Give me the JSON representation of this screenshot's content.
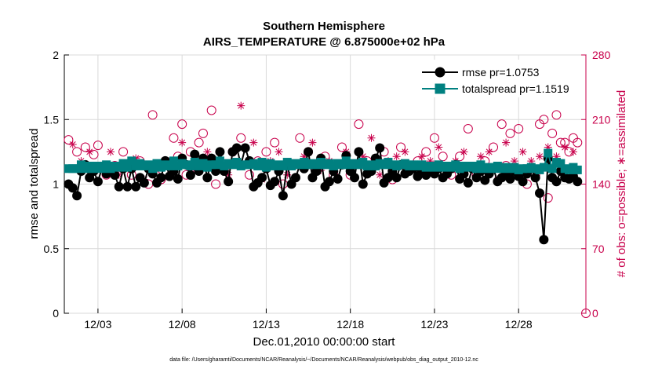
{
  "chart_data": {
    "type": "line",
    "title": "Southern Hemisphere",
    "subtitle": "AIRS_TEMPERATURE @ 6.875000e+02 hPa",
    "xlabel": "Dec.01,2010 00:00:00 start",
    "ylabel": "rmse and totalspread",
    "ylabel_right": "# of obs: o=possible; ∗=assimilated",
    "x_ticks": [
      {
        "value": 3,
        "label": "12/03"
      },
      {
        "value": 8,
        "label": "12/08"
      },
      {
        "value": 13,
        "label": "12/13"
      },
      {
        "value": 18,
        "label": "12/18"
      },
      {
        "value": 23,
        "label": "12/23"
      },
      {
        "value": 28,
        "label": "12/28"
      }
    ],
    "xlim": [
      1,
      32
    ],
    "ylim": [
      0,
      2
    ],
    "y_ticks": [
      0,
      0.5,
      1,
      1.5,
      2
    ],
    "ylim_right": [
      0,
      280
    ],
    "y_ticks_right": [
      0,
      70,
      140,
      210,
      280
    ],
    "footer": "data file: /Users/gharamti/Documents/NCAR/Reanalysis/~/Documents/NCAR/Reanalysis/webpub/obs_diag_output_2010-12.nc",
    "series": [
      {
        "name": "rmse pr=1.0753",
        "color": "#000000",
        "x": [
          1.25,
          1.5,
          1.75,
          2.0,
          2.25,
          2.5,
          2.75,
          3.0,
          3.25,
          3.5,
          3.75,
          4.0,
          4.25,
          4.5,
          4.75,
          5.0,
          5.25,
          5.5,
          5.75,
          6.0,
          6.25,
          6.5,
          6.75,
          7.0,
          7.25,
          7.5,
          7.75,
          8.0,
          8.25,
          8.5,
          8.75,
          9.0,
          9.25,
          9.5,
          9.75,
          10.0,
          10.25,
          10.5,
          10.75,
          11.0,
          11.25,
          11.5,
          11.75,
          12.0,
          12.25,
          12.5,
          12.75,
          13.0,
          13.25,
          13.5,
          13.75,
          14.0,
          14.25,
          14.5,
          14.75,
          15.0,
          15.25,
          15.5,
          15.75,
          16.0,
          16.25,
          16.5,
          16.75,
          17.0,
          17.25,
          17.5,
          17.75,
          18.0,
          18.25,
          18.5,
          18.75,
          19.0,
          19.25,
          19.5,
          19.75,
          20.0,
          20.25,
          20.5,
          20.75,
          21.0,
          21.25,
          21.5,
          21.75,
          22.0,
          22.25,
          22.5,
          22.75,
          23.0,
          23.25,
          23.5,
          23.75,
          24.0,
          24.25,
          24.5,
          24.75,
          25.0,
          25.25,
          25.5,
          25.75,
          26.0,
          26.25,
          26.5,
          26.75,
          27.0,
          27.25,
          27.5,
          27.75,
          28.0,
          28.25,
          28.5,
          28.75,
          29.0,
          29.25,
          29.5,
          29.75,
          30.0,
          30.25,
          30.5,
          30.75,
          31.0,
          31.25,
          31.5
        ],
        "values": [
          1.0,
          0.97,
          0.91,
          1.1,
          1.15,
          1.05,
          1.1,
          1.02,
          1.13,
          1.08,
          1.1,
          1.07,
          0.98,
          1.12,
          0.98,
          1.12,
          0.98,
          1.05,
          1.01,
          1.12,
          1.08,
          1.01,
          1.05,
          1.18,
          1.06,
          1.1,
          1.04,
          1.2,
          1.15,
          1.07,
          1.23,
          1.1,
          1.2,
          1.05,
          1.2,
          1.1,
          1.25,
          1.1,
          1.02,
          1.25,
          1.28,
          1.15,
          1.28,
          1.18,
          0.98,
          1.01,
          1.05,
          1.12,
          0.99,
          1.02,
          1.1,
          0.91,
          1.15,
          1.0,
          1.05,
          1.15,
          1.12,
          1.25,
          1.05,
          1.1,
          1.2,
          0.98,
          1.02,
          1.1,
          1.04,
          1.15,
          1.22,
          1.1,
          1.05,
          1.25,
          1.0,
          1.08,
          1.1,
          1.2,
          1.28,
          1.01,
          1.05,
          1.1,
          1.05,
          1.15,
          1.08,
          1.1,
          1.12,
          1.06,
          1.1,
          1.07,
          1.1,
          1.08,
          1.12,
          1.05,
          1.08,
          1.12,
          1.15,
          1.04,
          1.08,
          1.01,
          1.12,
          1.05,
          1.1,
          1.03,
          1.08,
          1.12,
          1.02,
          1.05,
          1.08,
          1.04,
          1.1,
          1.06,
          1.02,
          1.08,
          1.12,
          1.05,
          0.93,
          0.57,
          1.2,
          1.05,
          1.02,
          1.1,
          1.05,
          1.04,
          1.06,
          1.02
        ]
      },
      {
        "name": "totalspread pr=1.1519",
        "color": "#008080",
        "x": [
          1.25,
          1.5,
          1.75,
          2.0,
          2.25,
          2.5,
          2.75,
          3.0,
          3.25,
          3.5,
          3.75,
          4.0,
          4.25,
          4.5,
          4.75,
          5.0,
          5.25,
          5.5,
          5.75,
          6.0,
          6.25,
          6.5,
          6.75,
          7.0,
          7.25,
          7.5,
          7.75,
          8.0,
          8.25,
          8.5,
          8.75,
          9.0,
          9.25,
          9.5,
          9.75,
          10.0,
          10.25,
          10.5,
          10.75,
          11.0,
          11.25,
          11.5,
          11.75,
          12.0,
          12.25,
          12.5,
          12.75,
          13.0,
          13.25,
          13.5,
          13.75,
          14.0,
          14.25,
          14.5,
          14.75,
          15.0,
          15.25,
          15.5,
          15.75,
          16.0,
          16.25,
          16.5,
          16.75,
          17.0,
          17.25,
          17.5,
          17.75,
          18.0,
          18.25,
          18.5,
          18.75,
          19.0,
          19.25,
          19.5,
          19.75,
          20.0,
          20.25,
          20.5,
          20.75,
          21.0,
          21.25,
          21.5,
          21.75,
          22.0,
          22.25,
          22.5,
          22.75,
          23.0,
          23.25,
          23.5,
          23.75,
          24.0,
          24.25,
          24.5,
          24.75,
          25.0,
          25.25,
          25.5,
          25.75,
          26.0,
          26.25,
          26.5,
          26.75,
          27.0,
          27.25,
          27.5,
          27.75,
          28.0,
          28.25,
          28.5,
          28.75,
          29.0,
          29.25,
          29.5,
          29.75,
          30.0,
          30.25,
          30.5,
          30.75,
          31.0,
          31.25,
          31.5
        ],
        "values": [
          1.12,
          1.12,
          1.12,
          1.15,
          1.12,
          1.14,
          1.12,
          1.14,
          1.12,
          1.15,
          1.12,
          1.14,
          1.13,
          1.16,
          1.13,
          1.18,
          1.14,
          1.16,
          1.14,
          1.15,
          1.12,
          1.16,
          1.13,
          1.15,
          1.14,
          1.18,
          1.14,
          1.16,
          1.15,
          1.14,
          1.17,
          1.14,
          1.16,
          1.13,
          1.15,
          1.15,
          1.18,
          1.14,
          1.16,
          1.15,
          1.17,
          1.14,
          1.15,
          1.15,
          1.16,
          1.14,
          1.17,
          1.13,
          1.16,
          1.14,
          1.15,
          1.14,
          1.17,
          1.14,
          1.16,
          1.15,
          1.17,
          1.15,
          1.16,
          1.15,
          1.17,
          1.15,
          1.16,
          1.14,
          1.16,
          1.15,
          1.18,
          1.15,
          1.16,
          1.15,
          1.17,
          1.14,
          1.15,
          1.14,
          1.16,
          1.15,
          1.17,
          1.15,
          1.14,
          1.15,
          1.16,
          1.14,
          1.15,
          1.14,
          1.15,
          1.13,
          1.14,
          1.13,
          1.15,
          1.13,
          1.14,
          1.13,
          1.15,
          1.12,
          1.14,
          1.13,
          1.14,
          1.12,
          1.15,
          1.12,
          1.13,
          1.12,
          1.14,
          1.12,
          1.13,
          1.12,
          1.13,
          1.11,
          1.12,
          1.12,
          1.13,
          1.12,
          1.11,
          1.13,
          1.24,
          1.12,
          1.17,
          1.16,
          1.12,
          1.11,
          1.13,
          1.11
        ]
      },
      {
        "name": "obs possible",
        "color": "#c8004b",
        "marker": "circle",
        "axis": "right",
        "x": [
          1.25,
          1.75,
          2.25,
          2.75,
          3.0,
          3.5,
          4.0,
          4.5,
          5.0,
          5.5,
          6.0,
          6.25,
          6.75,
          7.0,
          7.5,
          7.75,
          8.0,
          8.25,
          8.5,
          9.0,
          9.25,
          9.75,
          10.0,
          10.5,
          11.0,
          11.5,
          12.0,
          12.5,
          13.0,
          13.5,
          14.0,
          14.5,
          15.0,
          15.5,
          16.0,
          16.5,
          17.0,
          17.5,
          18.0,
          18.5,
          19.0,
          19.5,
          20.0,
          20.5,
          21.0,
          21.5,
          22.0,
          22.5,
          23.0,
          23.5,
          24.0,
          24.5,
          25.0,
          25.5,
          26.0,
          26.5,
          27.0,
          27.25,
          27.5,
          28.0,
          28.5,
          29.0,
          29.25,
          29.5,
          29.75,
          30.0,
          30.25,
          30.5,
          30.75,
          31.0,
          31.25,
          31.5
        ],
        "values": [
          188,
          175,
          180,
          172,
          182,
          150,
          160,
          175,
          150,
          165,
          140,
          215,
          145,
          160,
          190,
          170,
          205,
          150,
          175,
          185,
          195,
          220,
          140,
          155,
          175,
          190,
          150,
          165,
          175,
          185,
          140,
          160,
          190,
          175,
          155,
          170,
          150,
          180,
          150,
          205,
          165,
          160,
          175,
          145,
          180,
          155,
          165,
          175,
          190,
          170,
          150,
          170,
          200,
          150,
          165,
          180,
          205,
          160,
          195,
          200,
          140,
          150,
          205,
          210,
          125,
          195,
          215,
          185,
          185,
          175,
          190,
          185
        ]
      },
      {
        "name": "obs assimilated",
        "color": "#c8004b",
        "marker": "star",
        "axis": "right",
        "x": [
          1.5,
          2.0,
          2.5,
          3.25,
          3.75,
          4.25,
          4.75,
          5.25,
          5.75,
          6.5,
          7.25,
          8.0,
          8.75,
          9.5,
          10.25,
          10.75,
          11.5,
          12.25,
          12.75,
          13.25,
          13.75,
          14.25,
          14.75,
          15.25,
          15.75,
          16.25,
          16.75,
          17.25,
          17.75,
          18.25,
          18.75,
          19.25,
          19.75,
          20.25,
          20.75,
          21.25,
          21.75,
          22.25,
          22.75,
          23.25,
          23.75,
          24.25,
          24.75,
          25.25,
          25.75,
          26.25,
          26.75,
          27.25,
          27.75,
          28.25,
          28.75,
          29.25,
          29.75,
          30.25,
          30.75,
          31.25
        ],
        "values": [
          183,
          165,
          175,
          160,
          175,
          150,
          158,
          168,
          145,
          155,
          165,
          185,
          155,
          175,
          165,
          150,
          225,
          185,
          145,
          165,
          175,
          150,
          160,
          170,
          185,
          155,
          165,
          145,
          175,
          160,
          170,
          190,
          150,
          165,
          170,
          175,
          160,
          170,
          165,
          180,
          155,
          165,
          175,
          160,
          170,
          175,
          145,
          185,
          165,
          175,
          165,
          170,
          180,
          170,
          180,
          175
        ]
      }
    ]
  }
}
